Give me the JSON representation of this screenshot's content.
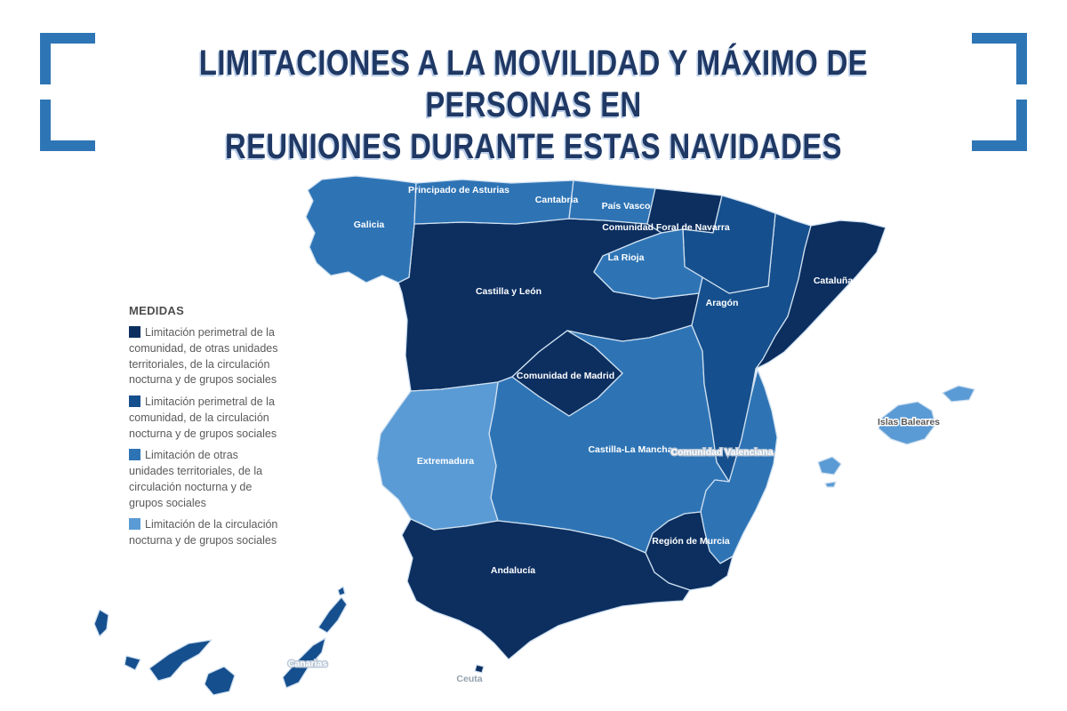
{
  "title": {
    "line1": "LIMITACIONES A LA MOVILIDAD Y MÁXIMO DE PERSONAS EN",
    "line2": "REUNIONES DURANTE ESTAS NAVIDADES"
  },
  "colors": {
    "title": "#1f3864",
    "bracket": "#2e75b6",
    "region_border": "#cfe0f0",
    "measure_colors": [
      "#0c2f60",
      "#164f8d",
      "#2e74b5",
      "#5b9bd5"
    ]
  },
  "legend": {
    "heading": "MEDIDAS",
    "items": [
      {
        "label": "Limitación perimetral de la comunidad, de otras unidades territoriales, de la circulación nocturna y de grupos sociales",
        "color": "#0c2f60"
      },
      {
        "label": "Limitación perimetral de la comunidad, de la circulación nocturna y de grupos sociales",
        "color": "#164f8d"
      },
      {
        "label": "Limitación de otras unidades territoriales, de la circulación nocturna y de grupos sociales",
        "color": "#2e74b5"
      },
      {
        "label": "Limitación de la circulación nocturna y de grupos sociales",
        "color": "#5b9bd5"
      }
    ]
  },
  "map": {
    "type": "choropleth",
    "regions": [
      {
        "id": "castilla_leon",
        "name": "Castilla y León",
        "measure": 0,
        "label_style": "light"
      },
      {
        "id": "clm",
        "name": "Castilla-La Mancha",
        "measure": 2,
        "label_style": "light"
      },
      {
        "id": "aragon",
        "name": "Aragón",
        "measure": 1,
        "label_style": "light"
      },
      {
        "id": "galicia",
        "name": "Galicia",
        "measure": 2,
        "label_style": "light"
      },
      {
        "id": "asturias",
        "name": "Principado de Asturias",
        "measure": 2,
        "label_style": "light"
      },
      {
        "id": "cantabria",
        "name": "Cantabria",
        "measure": 2,
        "label_style": "light"
      },
      {
        "id": "pais_vasco",
        "name": "País Vasco",
        "measure": 0,
        "label_style": "light"
      },
      {
        "id": "navarra",
        "name": "Comunidad Foral de Navarra",
        "measure": 1,
        "label_style": "light"
      },
      {
        "id": "la_rioja",
        "name": "La Rioja",
        "measure": 2,
        "label_style": "light"
      },
      {
        "id": "cataluna",
        "name": "Cataluña",
        "measure": 0,
        "label_style": "light"
      },
      {
        "id": "valenciana",
        "name": "Comunidad Valenciana",
        "measure": 2,
        "label_style": "muted-halo"
      },
      {
        "id": "murcia",
        "name": "Región de Murcia",
        "measure": 0,
        "label_style": "light"
      },
      {
        "id": "madrid",
        "name": "Comunidad de Madrid",
        "measure": 0,
        "label_style": "light"
      },
      {
        "id": "extremadura",
        "name": "Extremadura",
        "measure": 3,
        "label_style": "light"
      },
      {
        "id": "andalucia",
        "name": "Andalucía",
        "measure": 0,
        "label_style": "light"
      },
      {
        "id": "canarias",
        "name": "Canarias",
        "measure": 1,
        "label_style": "muted-halo"
      },
      {
        "id": "baleares",
        "name": "Islas Baleares",
        "measure": 3,
        "label_style": "dark-halo"
      },
      {
        "id": "ceuta",
        "name": "Ceuta",
        "measure": 0,
        "label_style": "grey-halo"
      }
    ]
  }
}
